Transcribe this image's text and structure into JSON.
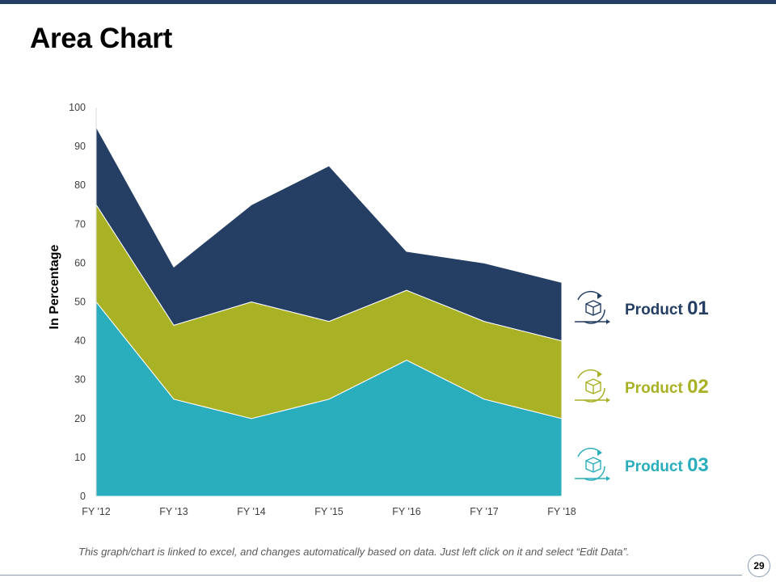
{
  "slide": {
    "title": "Area Chart",
    "footnote": "This graph/chart is linked to excel, and changes automatically based on data. Just left click on it and select “Edit Data”.",
    "page_number": "29"
  },
  "legend": [
    {
      "word": "Product",
      "number": "01",
      "icon": "box-cycle-icon",
      "color": "#243f63"
    },
    {
      "word": "Product",
      "number": "02",
      "icon": "box-cycle-icon",
      "color": "#a9b124"
    },
    {
      "word": "Product",
      "number": "03",
      "icon": "box-cycle-icon",
      "color": "#2aaebd"
    }
  ],
  "chart_data": {
    "type": "area",
    "stacked": true,
    "categories": [
      "FY '12",
      "FY '13",
      "FY '14",
      "FY '15",
      "FY '16",
      "FY '17",
      "FY '18"
    ],
    "series": [
      {
        "name": "Product 03",
        "color": "#2aaebd",
        "values": [
          50,
          25,
          20,
          25,
          35,
          25,
          20
        ]
      },
      {
        "name": "Product 02",
        "color": "#a9b124",
        "values": [
          25,
          19,
          30,
          20,
          18,
          20,
          20
        ]
      },
      {
        "name": "Product 01",
        "color": "#243f63",
        "values": [
          20,
          15,
          25,
          40,
          10,
          15,
          15
        ]
      }
    ],
    "ylabel": "In Percentage",
    "xlabel": "",
    "ylim": [
      0,
      100
    ],
    "yticks": [
      0,
      10,
      20,
      30,
      40,
      50,
      60,
      70,
      80,
      90,
      100
    ],
    "grid": false,
    "legend_position": "right"
  }
}
